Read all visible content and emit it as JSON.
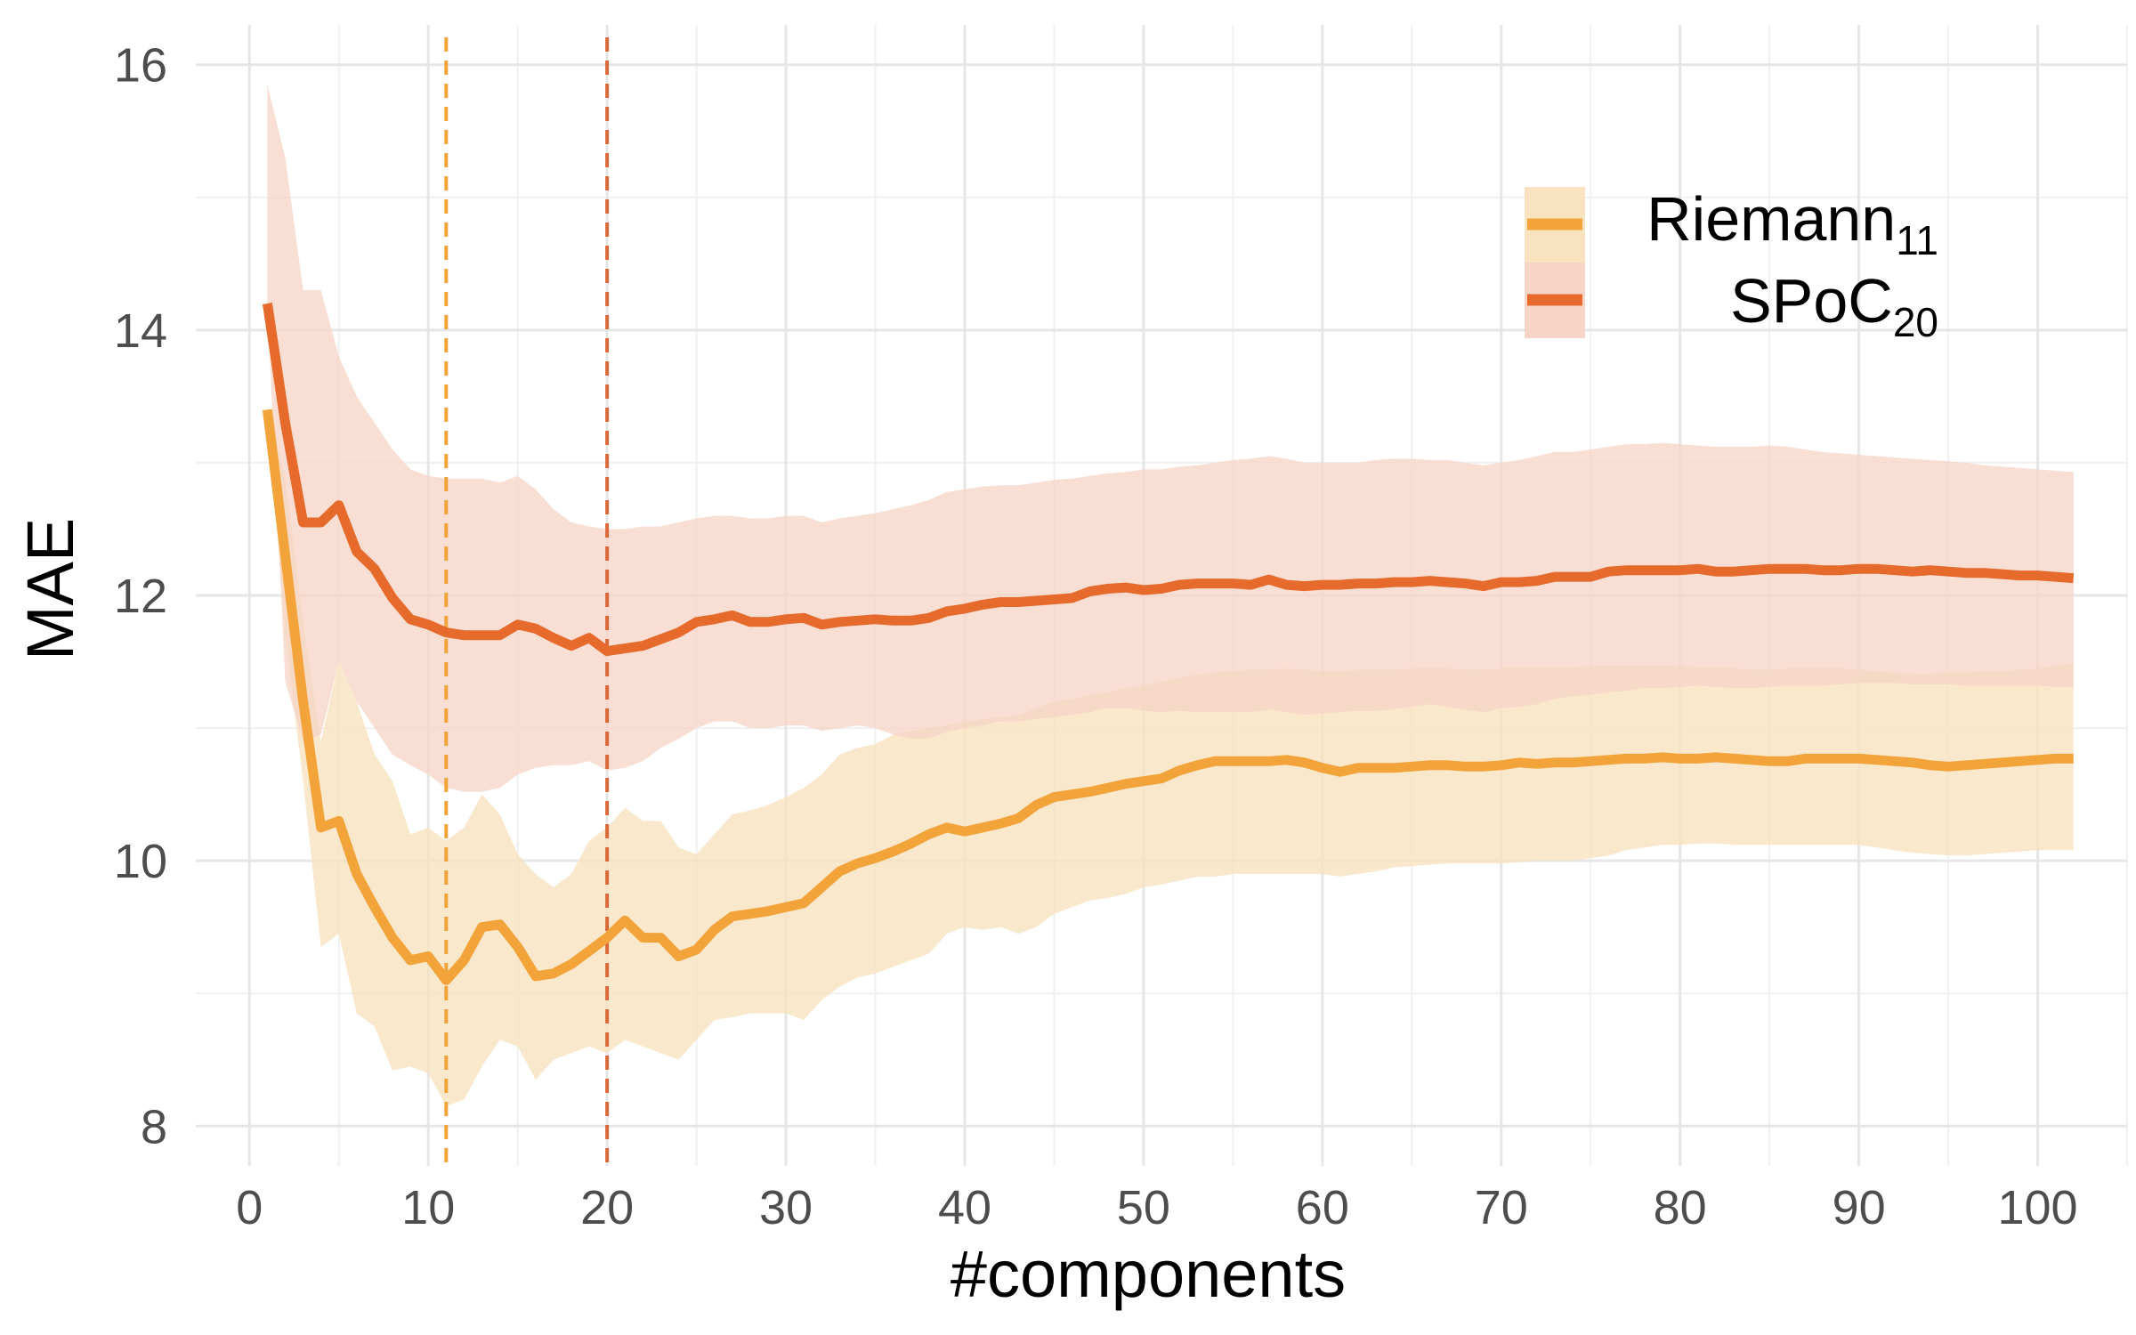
{
  "chart_data": {
    "type": "line",
    "xlabel": "#components",
    "ylabel": "MAE",
    "xlim": [
      -3,
      105
    ],
    "ylim": [
      7.7,
      16.3
    ],
    "xticks": [
      0,
      10,
      20,
      30,
      40,
      50,
      60,
      70,
      80,
      90,
      100
    ],
    "yticks": [
      8,
      10,
      12,
      14,
      16
    ],
    "grid": true,
    "legend_position": "top-right",
    "vlines": [
      {
        "x": 11,
        "color": "#F2A43A",
        "style": "dashed"
      },
      {
        "x": 20,
        "color": "#D9693A",
        "style": "dashed"
      }
    ],
    "series": [
      {
        "name": "Riemann",
        "subscript": "11",
        "color": "#F2A43A",
        "band_color": "#F8E2BF",
        "x": [
          1,
          2,
          3,
          4,
          5,
          6,
          7,
          8,
          9,
          10,
          11,
          12,
          13,
          14,
          15,
          16,
          17,
          18,
          19,
          20,
          21,
          22,
          23,
          24,
          25,
          26,
          27,
          28,
          29,
          30,
          31,
          32,
          33,
          34,
          35,
          36,
          37,
          38,
          39,
          40,
          41,
          42,
          43,
          44,
          45,
          46,
          47,
          48,
          49,
          50,
          51,
          52,
          53,
          54,
          55,
          56,
          57,
          58,
          59,
          60,
          61,
          62,
          63,
          64,
          65,
          66,
          67,
          68,
          69,
          70,
          71,
          72,
          73,
          74,
          75,
          76,
          77,
          78,
          79,
          80,
          81,
          82,
          83,
          84,
          85,
          86,
          87,
          88,
          89,
          90,
          91,
          92,
          93,
          94,
          95,
          96,
          97,
          98,
          99,
          100,
          101,
          102
        ],
        "y": [
          13.4,
          12.3,
          11.2,
          10.25,
          10.3,
          9.9,
          9.65,
          9.42,
          9.25,
          9.28,
          9.1,
          9.25,
          9.5,
          9.52,
          9.35,
          9.13,
          9.15,
          9.22,
          9.32,
          9.42,
          9.55,
          9.42,
          9.42,
          9.28,
          9.33,
          9.48,
          9.58,
          9.6,
          9.62,
          9.65,
          9.68,
          9.8,
          9.92,
          9.98,
          10.02,
          10.07,
          10.13,
          10.2,
          10.25,
          10.22,
          10.25,
          10.28,
          10.32,
          10.42,
          10.48,
          10.5,
          10.52,
          10.55,
          10.58,
          10.6,
          10.62,
          10.68,
          10.72,
          10.75,
          10.75,
          10.75,
          10.75,
          10.76,
          10.74,
          10.7,
          10.67,
          10.7,
          10.7,
          10.7,
          10.71,
          10.72,
          10.72,
          10.71,
          10.71,
          10.72,
          10.74,
          10.73,
          10.74,
          10.74,
          10.75,
          10.76,
          10.77,
          10.77,
          10.78,
          10.77,
          10.77,
          10.78,
          10.77,
          10.76,
          10.75,
          10.75,
          10.77,
          10.77,
          10.77,
          10.77,
          10.76,
          10.75,
          10.74,
          10.72,
          10.71,
          10.72,
          10.73,
          10.74,
          10.75,
          10.76,
          10.77,
          10.77
        ],
        "upper": [
          13.4,
          12.9,
          11.8,
          10.9,
          11.5,
          11.2,
          10.8,
          10.6,
          10.2,
          10.25,
          10.15,
          10.25,
          10.5,
          10.35,
          10.05,
          9.9,
          9.8,
          9.9,
          10.15,
          10.25,
          10.4,
          10.3,
          10.3,
          10.1,
          10.05,
          10.2,
          10.35,
          10.38,
          10.42,
          10.48,
          10.55,
          10.65,
          10.8,
          10.85,
          10.88,
          10.95,
          10.98,
          11.0,
          11.02,
          11.05,
          11.07,
          11.08,
          11.1,
          11.15,
          11.2,
          11.22,
          11.25,
          11.27,
          11.3,
          11.32,
          11.35,
          11.38,
          11.4,
          11.42,
          11.43,
          11.44,
          11.44,
          11.45,
          11.44,
          11.43,
          11.43,
          11.44,
          11.44,
          11.44,
          11.45,
          11.45,
          11.45,
          11.44,
          11.44,
          11.45,
          11.46,
          11.46,
          11.46,
          11.46,
          11.47,
          11.47,
          11.47,
          11.47,
          11.47,
          11.47,
          11.46,
          11.46,
          11.45,
          11.44,
          11.44,
          11.45,
          11.45,
          11.45,
          11.45,
          11.44,
          11.43,
          11.42,
          11.41,
          11.41,
          11.42,
          11.42,
          11.43,
          11.43,
          11.44,
          11.45,
          11.47,
          11.49
        ],
        "lower": [
          13.4,
          11.7,
          10.6,
          9.35,
          9.45,
          8.85,
          8.75,
          8.42,
          8.45,
          8.4,
          8.15,
          8.2,
          8.45,
          8.65,
          8.6,
          8.35,
          8.5,
          8.55,
          8.6,
          8.55,
          8.65,
          8.6,
          8.55,
          8.5,
          8.65,
          8.8,
          8.82,
          8.85,
          8.85,
          8.85,
          8.8,
          8.95,
          9.05,
          9.12,
          9.15,
          9.2,
          9.25,
          9.3,
          9.45,
          9.5,
          9.48,
          9.5,
          9.45,
          9.5,
          9.6,
          9.65,
          9.7,
          9.72,
          9.75,
          9.8,
          9.82,
          9.85,
          9.88,
          9.88,
          9.9,
          9.9,
          9.9,
          9.9,
          9.9,
          9.9,
          9.88,
          9.9,
          9.92,
          9.95,
          9.96,
          9.97,
          9.98,
          9.98,
          9.98,
          9.98,
          9.99,
          10.0,
          10.0,
          10.0,
          10.02,
          10.04,
          10.08,
          10.1,
          10.12,
          10.12,
          10.13,
          10.13,
          10.12,
          10.12,
          10.12,
          10.12,
          10.12,
          10.12,
          10.12,
          10.12,
          10.1,
          10.08,
          10.06,
          10.05,
          10.04,
          10.04,
          10.05,
          10.06,
          10.07,
          10.08,
          10.08,
          10.08
        ]
      },
      {
        "name": "SPoC",
        "subscript": "20",
        "color": "#E66A2C",
        "band_color": "#F6D5C7",
        "x": [
          1,
          2,
          3,
          4,
          5,
          6,
          7,
          8,
          9,
          10,
          11,
          12,
          13,
          14,
          15,
          16,
          17,
          18,
          19,
          20,
          21,
          22,
          23,
          24,
          25,
          26,
          27,
          28,
          29,
          30,
          31,
          32,
          33,
          34,
          35,
          36,
          37,
          38,
          39,
          40,
          41,
          42,
          43,
          44,
          45,
          46,
          47,
          48,
          49,
          50,
          51,
          52,
          53,
          54,
          55,
          56,
          57,
          58,
          59,
          60,
          61,
          62,
          63,
          64,
          65,
          66,
          67,
          68,
          69,
          70,
          71,
          72,
          73,
          74,
          75,
          76,
          77,
          78,
          79,
          80,
          81,
          82,
          83,
          84,
          85,
          86,
          87,
          88,
          89,
          90,
          91,
          92,
          93,
          94,
          95,
          96,
          97,
          98,
          99,
          100,
          101,
          102
        ],
        "y": [
          14.2,
          13.3,
          12.55,
          12.55,
          12.68,
          12.33,
          12.2,
          11.98,
          11.82,
          11.78,
          11.72,
          11.7,
          11.7,
          11.7,
          11.78,
          11.75,
          11.68,
          11.62,
          11.68,
          11.58,
          11.6,
          11.62,
          11.67,
          11.72,
          11.8,
          11.82,
          11.85,
          11.8,
          11.8,
          11.82,
          11.83,
          11.78,
          11.8,
          11.81,
          11.82,
          11.81,
          11.81,
          11.83,
          11.88,
          11.9,
          11.93,
          11.95,
          11.95,
          11.96,
          11.97,
          11.98,
          12.03,
          12.05,
          12.06,
          12.04,
          12.05,
          12.08,
          12.09,
          12.09,
          12.09,
          12.08,
          12.12,
          12.08,
          12.07,
          12.08,
          12.08,
          12.09,
          12.09,
          12.1,
          12.1,
          12.11,
          12.1,
          12.09,
          12.07,
          12.1,
          12.1,
          12.11,
          12.14,
          12.14,
          12.14,
          12.18,
          12.19,
          12.19,
          12.19,
          12.19,
          12.2,
          12.18,
          12.18,
          12.19,
          12.2,
          12.2,
          12.2,
          12.19,
          12.19,
          12.2,
          12.2,
          12.19,
          12.18,
          12.19,
          12.18,
          12.17,
          12.17,
          12.16,
          12.15,
          12.15,
          12.14,
          12.13
        ],
        "upper": [
          15.85,
          15.3,
          14.3,
          14.3,
          13.8,
          13.5,
          13.3,
          13.1,
          12.95,
          12.9,
          12.88,
          12.88,
          12.88,
          12.85,
          12.9,
          12.8,
          12.65,
          12.55,
          12.52,
          12.5,
          12.5,
          12.52,
          12.52,
          12.55,
          12.58,
          12.6,
          12.6,
          12.58,
          12.58,
          12.6,
          12.6,
          12.55,
          12.58,
          12.6,
          12.62,
          12.65,
          12.68,
          12.72,
          12.78,
          12.8,
          12.82,
          12.83,
          12.83,
          12.85,
          12.87,
          12.88,
          12.9,
          12.92,
          12.93,
          12.95,
          12.95,
          12.97,
          12.98,
          13.0,
          13.02,
          13.03,
          13.05,
          13.03,
          13.0,
          13.0,
          13.0,
          13.0,
          13.02,
          13.03,
          13.03,
          13.02,
          13.02,
          13.0,
          12.98,
          13.0,
          13.02,
          13.05,
          13.08,
          13.08,
          13.1,
          13.12,
          13.14,
          13.14,
          13.15,
          13.14,
          13.13,
          13.12,
          13.12,
          13.12,
          13.13,
          13.12,
          13.1,
          13.08,
          13.07,
          13.06,
          13.05,
          13.04,
          13.03,
          13.02,
          13.01,
          13.0,
          12.98,
          12.97,
          12.96,
          12.95,
          12.94,
          12.93
        ],
        "lower": [
          14.2,
          11.35,
          10.9,
          10.95,
          11.5,
          11.2,
          11.0,
          10.8,
          10.72,
          10.65,
          10.55,
          10.52,
          10.52,
          10.55,
          10.65,
          10.7,
          10.72,
          10.72,
          10.75,
          10.68,
          10.7,
          10.75,
          10.85,
          10.92,
          11.0,
          11.05,
          11.05,
          11.0,
          11.0,
          11.02,
          11.02,
          10.98,
          11.0,
          11.02,
          11.0,
          10.95,
          10.92,
          10.92,
          10.97,
          11.0,
          11.02,
          11.05,
          11.05,
          11.07,
          11.08,
          11.1,
          11.12,
          11.15,
          11.15,
          11.13,
          11.12,
          11.13,
          11.12,
          11.12,
          11.12,
          11.12,
          11.14,
          11.12,
          11.1,
          11.11,
          11.12,
          11.13,
          11.13,
          11.14,
          11.16,
          11.18,
          11.16,
          11.14,
          11.12,
          11.15,
          11.16,
          11.18,
          11.22,
          11.24,
          11.25,
          11.27,
          11.28,
          11.3,
          11.3,
          11.31,
          11.32,
          11.31,
          11.3,
          11.3,
          11.31,
          11.32,
          11.32,
          11.32,
          11.33,
          11.34,
          11.34,
          11.34,
          11.33,
          11.33,
          11.33,
          11.32,
          11.32,
          11.32,
          11.32,
          11.32,
          11.31,
          11.31
        ]
      }
    ]
  }
}
